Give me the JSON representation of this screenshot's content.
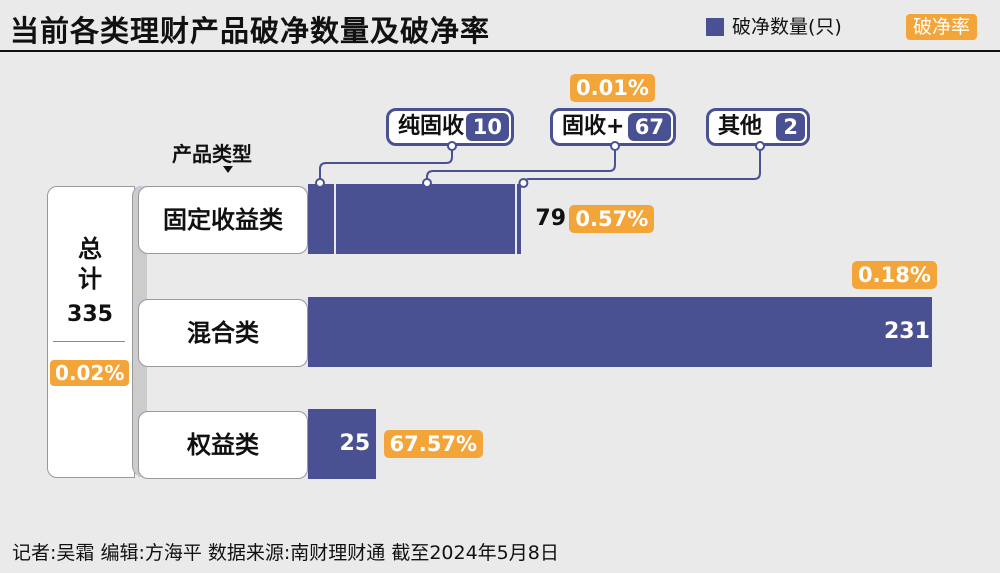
{
  "title": "当前各类理财产品破净数量及破净率",
  "legend": {
    "count_label": "破净数量(只)",
    "rate_label": "破净率"
  },
  "axis_label": "产品类型",
  "total": {
    "label": "总计",
    "value": "335",
    "rate": "0.02%"
  },
  "colors": {
    "bar": "#4a5193",
    "rate": "#f3a53a"
  },
  "chart_data": {
    "type": "bar",
    "title": "当前各类理财产品破净数量及破净率",
    "categories": [
      "固定收益类",
      "混合类",
      "权益类"
    ],
    "series": [
      {
        "name": "破净数量(只)",
        "values": [
          79,
          231,
          25
        ]
      },
      {
        "name": "破净率",
        "values": [
          "0.57%",
          "0.18%",
          "67.57%"
        ]
      }
    ],
    "value_labels": [
      "79",
      "231",
      "25"
    ],
    "rate_labels": [
      "0.57%",
      "0.18%",
      "67.57%"
    ],
    "xlim": [
      0,
      231
    ],
    "grid": false,
    "legend_position": "top-right",
    "sub_breakdown": {
      "parent": "固定收益类",
      "items": [
        {
          "name": "纯固收",
          "count": "10",
          "value": 10,
          "rate": ""
        },
        {
          "name": "固收+",
          "count": "67",
          "value": 67,
          "rate": "0.01%"
        },
        {
          "name": "其他",
          "count": "2",
          "value": 2,
          "rate": ""
        }
      ]
    }
  },
  "footer": "记者:吴霜   编辑:方海平   数据来源:南财理财通 截至2024年5月8日"
}
